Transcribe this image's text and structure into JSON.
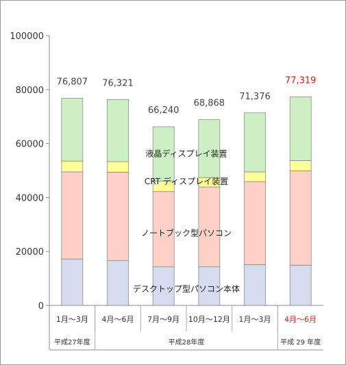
{
  "chart_data": {
    "type": "bar",
    "stacked": true,
    "ylim": [
      0,
      100000
    ],
    "yticks": [
      0,
      20000,
      40000,
      60000,
      80000,
      100000
    ],
    "grid": false,
    "categories": [
      "1月～3月",
      "4月～6月",
      "7月～9月",
      "10月～12月",
      "1月～3月",
      "4月～6月"
    ],
    "category_colors": [
      "#333333",
      "#333333",
      "#333333",
      "#333333",
      "#333333",
      "#e8141e"
    ],
    "totals": [
      "76,807",
      "76,321",
      "66,240",
      "68,868",
      "71,376",
      "77,319"
    ],
    "total_colors": [
      "#444444",
      "#444444",
      "#444444",
      "#444444",
      "#444444",
      "#e8141e"
    ],
    "groups": [
      {
        "label": "平成27年度",
        "span": [
          0,
          0
        ]
      },
      {
        "label": "平成28年度",
        "span": [
          1,
          4
        ]
      },
      {
        "label": "平成 29 年度",
        "span": [
          5,
          5
        ]
      }
    ],
    "series": [
      {
        "name": "デスクトップ型パソコン本体",
        "color": "#d6dcef",
        "values": [
          17200,
          16600,
          14300,
          14300,
          15100,
          14900
        ]
      },
      {
        "name": "ノートブック型パソコン",
        "color": "#ffd0c8",
        "values": [
          32300,
          32800,
          27900,
          29600,
          30800,
          35000
        ]
      },
      {
        "name": "CRT ディスプレイ装置",
        "color": "#ffff99",
        "values": [
          4000,
          3900,
          3900,
          3500,
          3600,
          3800
        ]
      },
      {
        "name": "液晶ディスプレイ装置",
        "color": "#ccf0c4",
        "values": [
          23307,
          23021,
          20140,
          21468,
          21876,
          23619
        ]
      }
    ]
  }
}
